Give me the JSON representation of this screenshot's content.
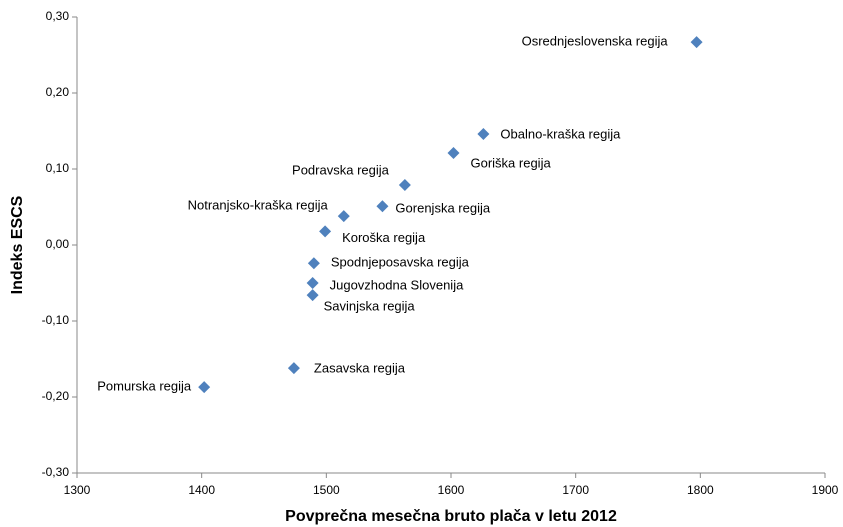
{
  "chart_data": {
    "type": "scatter",
    "xlabel": "Povprečna mesečna bruto  plača v letu 2012",
    "ylabel": "Indeks ESCS",
    "color": "#4f81bd",
    "labels": [
      "Osrednjeslovenska regija",
      "Obalno-kraška regija",
      "Goriška regija",
      "Podravska regija",
      "Gorenjska regija",
      "Notranjsko-kraška regija",
      "Koroška regija",
      "Spodnjeposavska regija",
      "Jugovzhodna Slovenija",
      "Savinjska regija",
      "Zasavska regija",
      "Pomurska regija"
    ],
    "x": [
      1797,
      1626,
      1602,
      1563,
      1545,
      1514,
      1499,
      1490,
      1489,
      1489,
      1474,
      1402
    ],
    "values": [
      0.267,
      0.146,
      0.121,
      0.079,
      0.051,
      0.038,
      0.018,
      -0.024,
      -0.05,
      -0.066,
      -0.162,
      -0.187
    ],
    "xlim": [
      1300,
      1900
    ],
    "xticks": [
      1300,
      1400,
      1500,
      1600,
      1700,
      1800,
      1900
    ],
    "ylim": [
      -0.3,
      0.3
    ],
    "yticks": [
      {
        "value": -0.3,
        "label": "-0,30"
      },
      {
        "value": -0.2,
        "label": "-0,20"
      },
      {
        "value": -0.1,
        "label": "-0,10"
      },
      {
        "value": 0,
        "label": "0,00"
      },
      {
        "value": 0.1,
        "label": "0,10"
      },
      {
        "value": 0.2,
        "label": "0,20"
      },
      {
        "value": 0.3,
        "label": "0,30"
      }
    ],
    "grid": false
  }
}
